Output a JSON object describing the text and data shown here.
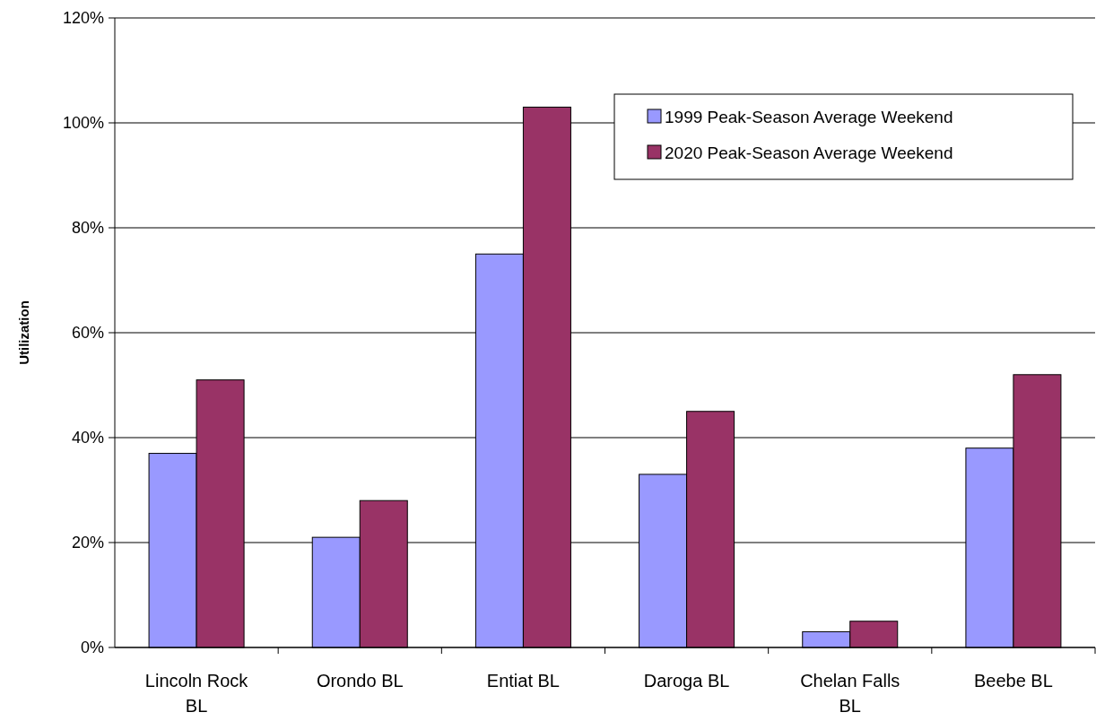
{
  "chart_data": {
    "type": "bar",
    "ylabel": "Utilization",
    "categories": [
      "Lincoln Rock BL",
      "Orondo BL",
      "Entiat BL",
      "Daroga BL",
      "Chelan Falls BL",
      "Beebe BL"
    ],
    "series": [
      {
        "name": "1999 Peak-Season Average Weekend",
        "color": "#9999ff",
        "values": [
          37,
          21,
          75,
          33,
          3,
          38
        ]
      },
      {
        "name": "2020 Peak-Season Average Weekend",
        "color": "#993366",
        "values": [
          51,
          28,
          103,
          45,
          5,
          52
        ]
      }
    ],
    "ylim": [
      0,
      120
    ],
    "yticks": [
      {
        "value": 0,
        "label": "0%"
      },
      {
        "value": 20,
        "label": "20%"
      },
      {
        "value": 40,
        "label": "40%"
      },
      {
        "value": 60,
        "label": "60%"
      },
      {
        "value": 80,
        "label": "80%"
      },
      {
        "value": 100,
        "label": "100%"
      },
      {
        "value": 120,
        "label": "120%"
      }
    ],
    "grid": "y",
    "legend": "top right"
  }
}
